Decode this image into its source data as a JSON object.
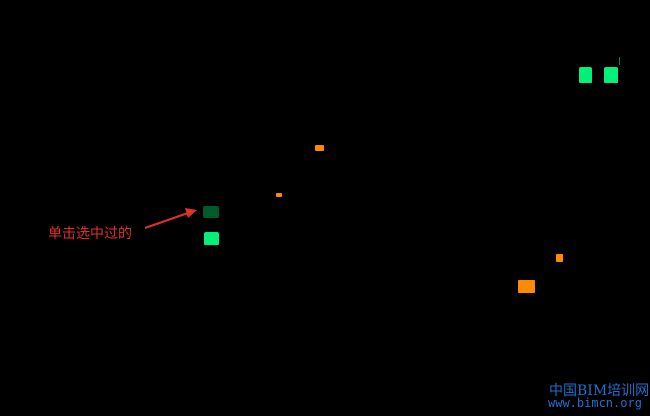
{
  "annotation": {
    "text": "单击选中过的",
    "color": "#e0302a"
  },
  "watermark": {
    "line1": "中国BIM培训网",
    "line2": "www.bimcn.org"
  },
  "colors": {
    "unselected_green": "#00f07a",
    "selected_green": "#005a2a",
    "orange": "#ff8a00",
    "background": "#000000"
  }
}
